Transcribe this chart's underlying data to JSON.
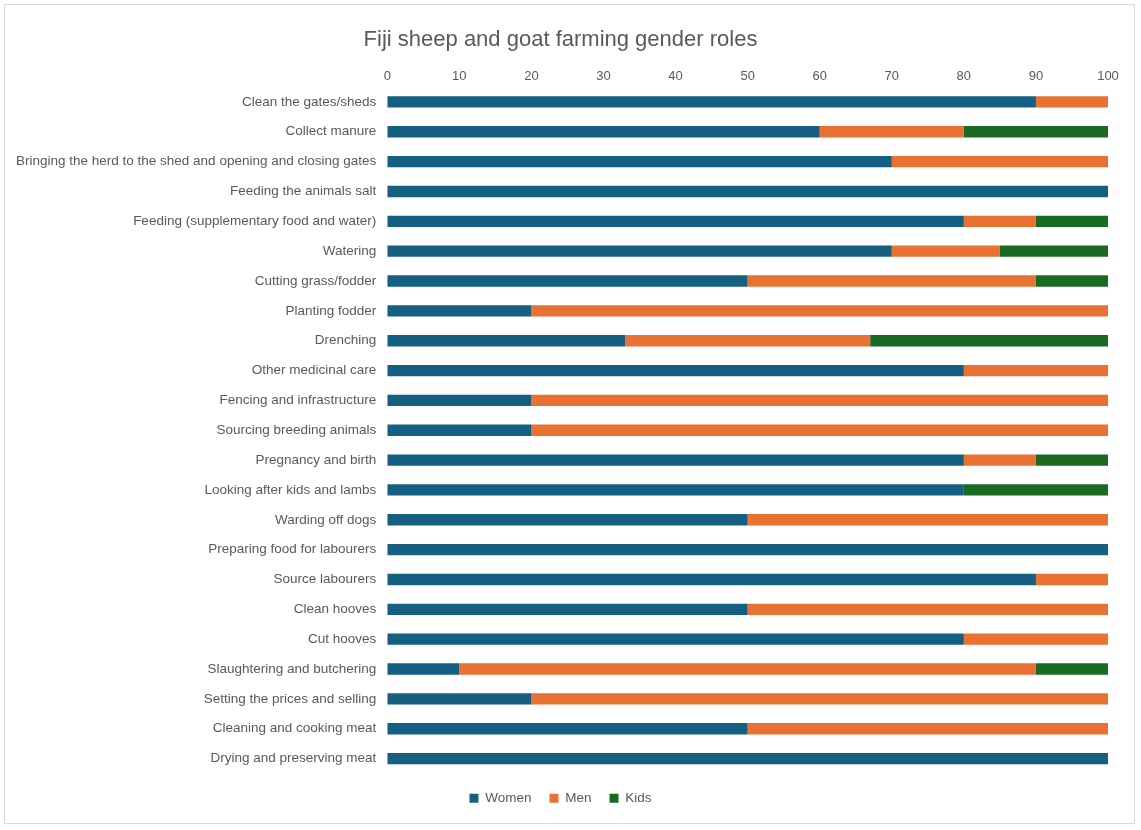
{
  "chart_data": {
    "type": "bar",
    "orientation": "horizontal",
    "stacked": true,
    "title": "Fiji sheep and goat farming gender roles",
    "categories": [
      "Clean the gates/sheds",
      "Collect manure",
      "Bringing the herd to the shed and opening and closing gates",
      "Feeding the animals salt",
      "Feeding (supplementary food and water)",
      "Watering",
      "Cutting grass/fodder",
      "Planting fodder",
      "Drenching",
      "Other medicinal care",
      "Fencing and infrastructure",
      "Sourcing breeding animals",
      "Pregnancy and birth",
      "Looking after kids and lambs",
      "Warding off dogs",
      "Preparing food for labourers",
      "Source labourers",
      "Clean hooves",
      "Cut hooves",
      "Slaughtering and butchering",
      "Setting the prices and selling",
      "Cleaning and cooking meat",
      "Drying and preserving meat"
    ],
    "series": [
      {
        "name": "Women",
        "color": "#156082",
        "values": [
          90,
          60,
          70,
          100,
          80,
          70,
          50,
          20,
          33,
          80,
          20,
          20,
          80,
          80,
          50,
          100,
          90,
          50,
          80,
          10,
          20,
          50,
          100
        ]
      },
      {
        "name": "Men",
        "color": "#e97132",
        "values": [
          10,
          20,
          30,
          0,
          10,
          15,
          40,
          80,
          34,
          20,
          80,
          80,
          10,
          0,
          50,
          0,
          10,
          50,
          20,
          80,
          80,
          50,
          0
        ]
      },
      {
        "name": "Kids",
        "color": "#196b24",
        "values": [
          0,
          20,
          0,
          0,
          10,
          15,
          10,
          0,
          33,
          0,
          0,
          0,
          10,
          20,
          0,
          0,
          0,
          0,
          0,
          10,
          0,
          0,
          0
        ]
      }
    ],
    "xlim": [
      0,
      100
    ],
    "xticks": [
      0,
      10,
      20,
      30,
      40,
      50,
      60,
      70,
      80,
      90,
      100
    ],
    "grid": false,
    "legend": "bottom"
  }
}
